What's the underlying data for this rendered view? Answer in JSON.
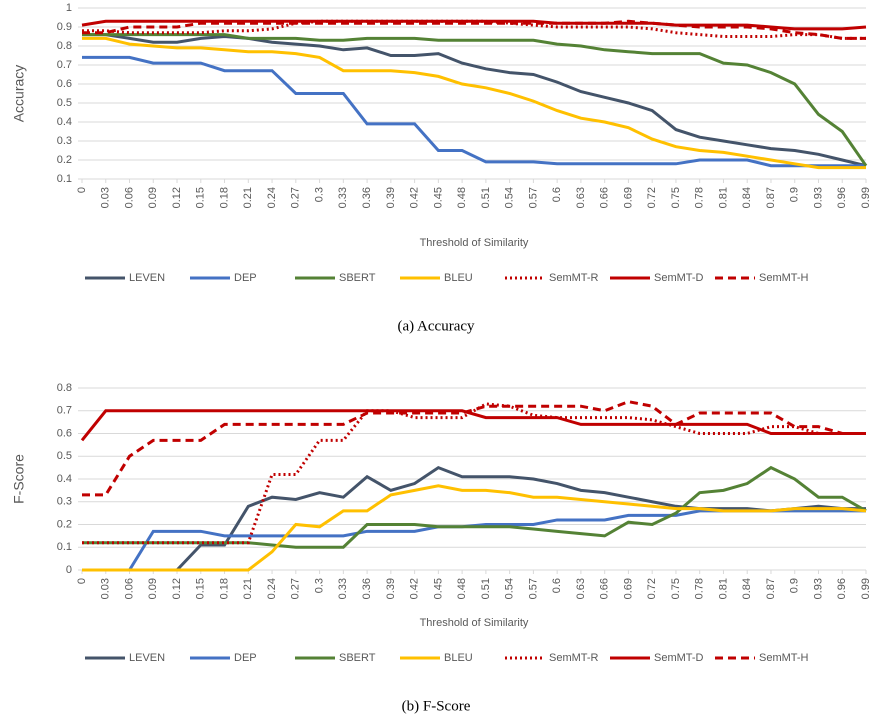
{
  "chart_data": [
    {
      "type": "line",
      "ylabel": "Accuracy",
      "xlabel": "Threshold of Similarity",
      "caption": "(a) Accuracy",
      "x": [
        0,
        0.03,
        0.06,
        0.09,
        0.12,
        0.15,
        0.18,
        0.21,
        0.24,
        0.27,
        0.3,
        0.33,
        0.36,
        0.39,
        0.42,
        0.45,
        0.48,
        0.51,
        0.54,
        0.57,
        0.6,
        0.63,
        0.66,
        0.69,
        0.72,
        0.75,
        0.78,
        0.81,
        0.84,
        0.87,
        0.9,
        0.93,
        0.96,
        0.99
      ],
      "xlim": [
        0,
        0.99
      ],
      "xticks": [
        0,
        0.03,
        0.06,
        0.09,
        0.12,
        0.15,
        0.18,
        0.21,
        0.24,
        0.27,
        0.3,
        0.33,
        0.36,
        0.39,
        0.42,
        0.45,
        0.48,
        0.51,
        0.54,
        0.57,
        0.6,
        0.63,
        0.66,
        0.69,
        0.72,
        0.75,
        0.78,
        0.81,
        0.84,
        0.87,
        0.9,
        0.93,
        0.96,
        0.99
      ],
      "ylim": [
        0.1,
        1
      ],
      "yticks": [
        0.1,
        0.2,
        0.3,
        0.4,
        0.5,
        0.6,
        0.7,
        0.8,
        0.9,
        1
      ],
      "grid": true,
      "series": [
        {
          "name": "LEVEN",
          "color": "#44546a",
          "dash": "solid",
          "values": [
            0.86,
            0.86,
            0.84,
            0.82,
            0.82,
            0.84,
            0.85,
            0.84,
            0.82,
            0.81,
            0.8,
            0.78,
            0.79,
            0.75,
            0.75,
            0.76,
            0.71,
            0.68,
            0.66,
            0.65,
            0.61,
            0.56,
            0.53,
            0.5,
            0.46,
            0.36,
            0.32,
            0.3,
            0.28,
            0.26,
            0.25,
            0.23,
            0.2,
            0.17
          ]
        },
        {
          "name": "DEP",
          "color": "#4472c4",
          "dash": "solid",
          "values": [
            0.74,
            0.74,
            0.74,
            0.71,
            0.71,
            0.71,
            0.67,
            0.67,
            0.67,
            0.55,
            0.55,
            0.55,
            0.39,
            0.39,
            0.39,
            0.25,
            0.25,
            0.19,
            0.19,
            0.19,
            0.18,
            0.18,
            0.18,
            0.18,
            0.18,
            0.18,
            0.2,
            0.2,
            0.2,
            0.17,
            0.17,
            0.17,
            0.17,
            0.17
          ]
        },
        {
          "name": "SBERT",
          "color": "#548235",
          "dash": "solid",
          "values": [
            0.86,
            0.86,
            0.86,
            0.86,
            0.86,
            0.86,
            0.86,
            0.84,
            0.84,
            0.84,
            0.83,
            0.83,
            0.84,
            0.84,
            0.84,
            0.83,
            0.83,
            0.83,
            0.83,
            0.83,
            0.81,
            0.8,
            0.78,
            0.77,
            0.76,
            0.76,
            0.76,
            0.71,
            0.7,
            0.66,
            0.6,
            0.44,
            0.35,
            0.17
          ]
        },
        {
          "name": "BLEU",
          "color": "#ffc000",
          "dash": "solid",
          "values": [
            0.84,
            0.84,
            0.81,
            0.8,
            0.79,
            0.79,
            0.78,
            0.77,
            0.77,
            0.76,
            0.74,
            0.67,
            0.67,
            0.67,
            0.66,
            0.64,
            0.6,
            0.58,
            0.55,
            0.51,
            0.46,
            0.42,
            0.4,
            0.37,
            0.31,
            0.27,
            0.25,
            0.24,
            0.22,
            0.2,
            0.18,
            0.16,
            0.16,
            0.16
          ]
        },
        {
          "name": "SemMT-R",
          "color": "#c00000",
          "dash": "dotted",
          "values": [
            0.88,
            0.88,
            0.87,
            0.87,
            0.87,
            0.87,
            0.88,
            0.88,
            0.89,
            0.92,
            0.93,
            0.93,
            0.93,
            0.93,
            0.93,
            0.93,
            0.93,
            0.93,
            0.92,
            0.91,
            0.9,
            0.9,
            0.9,
            0.9,
            0.89,
            0.87,
            0.86,
            0.85,
            0.85,
            0.85,
            0.86,
            0.86,
            0.84,
            0.84
          ]
        },
        {
          "name": "SemMT-D",
          "color": "#c00000",
          "dash": "solid",
          "values": [
            0.91,
            0.93,
            0.93,
            0.93,
            0.93,
            0.93,
            0.93,
            0.93,
            0.93,
            0.93,
            0.93,
            0.93,
            0.93,
            0.93,
            0.93,
            0.93,
            0.93,
            0.93,
            0.93,
            0.93,
            0.92,
            0.92,
            0.92,
            0.92,
            0.92,
            0.91,
            0.91,
            0.91,
            0.91,
            0.9,
            0.89,
            0.89,
            0.89,
            0.9
          ]
        },
        {
          "name": "SemMT-H",
          "color": "#c00000",
          "dash": "dashed",
          "values": [
            0.87,
            0.87,
            0.9,
            0.9,
            0.9,
            0.92,
            0.92,
            0.92,
            0.92,
            0.92,
            0.92,
            0.92,
            0.92,
            0.92,
            0.92,
            0.92,
            0.92,
            0.92,
            0.92,
            0.92,
            0.92,
            0.92,
            0.92,
            0.93,
            0.92,
            0.91,
            0.9,
            0.9,
            0.9,
            0.89,
            0.87,
            0.86,
            0.84,
            0.84
          ]
        }
      ]
    },
    {
      "type": "line",
      "ylabel": "F-Score",
      "xlabel": "Threshold of Similarity",
      "caption": "(b) F-Score",
      "x": [
        0,
        0.03,
        0.06,
        0.09,
        0.12,
        0.15,
        0.18,
        0.21,
        0.24,
        0.27,
        0.3,
        0.33,
        0.36,
        0.39,
        0.42,
        0.45,
        0.48,
        0.51,
        0.54,
        0.57,
        0.6,
        0.63,
        0.66,
        0.69,
        0.72,
        0.75,
        0.78,
        0.81,
        0.84,
        0.87,
        0.9,
        0.93,
        0.96,
        0.99
      ],
      "xlim": [
        0,
        0.99
      ],
      "xticks": [
        0,
        0.03,
        0.06,
        0.09,
        0.12,
        0.15,
        0.18,
        0.21,
        0.24,
        0.27,
        0.3,
        0.33,
        0.36,
        0.39,
        0.42,
        0.45,
        0.48,
        0.51,
        0.54,
        0.57,
        0.6,
        0.63,
        0.66,
        0.69,
        0.72,
        0.75,
        0.78,
        0.81,
        0.84,
        0.87,
        0.9,
        0.93,
        0.96,
        0.99
      ],
      "ylim": [
        0,
        0.8
      ],
      "yticks": [
        0,
        0.1,
        0.2,
        0.3,
        0.4,
        0.5,
        0.6,
        0.7,
        0.8
      ],
      "grid": true,
      "series": [
        {
          "name": "LEVEN",
          "color": "#44546a",
          "dash": "solid",
          "values": [
            0,
            0,
            0,
            0,
            0,
            0.11,
            0.11,
            0.28,
            0.32,
            0.31,
            0.34,
            0.32,
            0.41,
            0.35,
            0.38,
            0.45,
            0.41,
            0.41,
            0.41,
            0.4,
            0.38,
            0.35,
            0.34,
            0.32,
            0.3,
            0.28,
            0.27,
            0.27,
            0.27,
            0.26,
            0.27,
            0.28,
            0.27,
            0.27
          ]
        },
        {
          "name": "DEP",
          "color": "#4472c4",
          "dash": "solid",
          "values": [
            0,
            0,
            0,
            0.17,
            0.17,
            0.17,
            0.15,
            0.15,
            0.15,
            0.15,
            0.15,
            0.15,
            0.17,
            0.17,
            0.17,
            0.19,
            0.19,
            0.2,
            0.2,
            0.2,
            0.22,
            0.22,
            0.22,
            0.24,
            0.24,
            0.24,
            0.26,
            0.26,
            0.26,
            0.26,
            0.26,
            0.26,
            0.26,
            0.26
          ]
        },
        {
          "name": "SBERT",
          "color": "#548235",
          "dash": "solid",
          "values": [
            0.12,
            0.12,
            0.12,
            0.12,
            0.12,
            0.12,
            0.12,
            0.12,
            0.11,
            0.1,
            0.1,
            0.1,
            0.2,
            0.2,
            0.2,
            0.19,
            0.19,
            0.19,
            0.19,
            0.18,
            0.17,
            0.16,
            0.15,
            0.21,
            0.2,
            0.25,
            0.34,
            0.35,
            0.38,
            0.45,
            0.4,
            0.32,
            0.32,
            0.26
          ]
        },
        {
          "name": "BLEU",
          "color": "#ffc000",
          "dash": "solid",
          "values": [
            0,
            0,
            0,
            0,
            0,
            0,
            0,
            0,
            0.08,
            0.2,
            0.19,
            0.26,
            0.26,
            0.33,
            0.35,
            0.37,
            0.35,
            0.35,
            0.34,
            0.32,
            0.32,
            0.31,
            0.3,
            0.29,
            0.28,
            0.27,
            0.27,
            0.26,
            0.26,
            0.26,
            0.27,
            0.27,
            0.27,
            0.26
          ]
        },
        {
          "name": "SemMT-R",
          "color": "#c00000",
          "dash": "dotted",
          "values": [
            0.12,
            0.12,
            0.12,
            0.12,
            0.12,
            0.12,
            0.12,
            0.12,
            0.42,
            0.42,
            0.57,
            0.57,
            0.7,
            0.7,
            0.67,
            0.67,
            0.67,
            0.73,
            0.72,
            0.68,
            0.67,
            0.67,
            0.67,
            0.67,
            0.66,
            0.63,
            0.6,
            0.6,
            0.6,
            0.63,
            0.63,
            0.6,
            0.6,
            0.6
          ]
        },
        {
          "name": "SemMT-D",
          "color": "#c00000",
          "dash": "solid",
          "values": [
            0.57,
            0.7,
            0.7,
            0.7,
            0.7,
            0.7,
            0.7,
            0.7,
            0.7,
            0.7,
            0.7,
            0.7,
            0.7,
            0.7,
            0.7,
            0.7,
            0.7,
            0.67,
            0.67,
            0.67,
            0.67,
            0.64,
            0.64,
            0.64,
            0.64,
            0.64,
            0.64,
            0.64,
            0.64,
            0.6,
            0.6,
            0.6,
            0.6,
            0.6
          ]
        },
        {
          "name": "SemMT-H",
          "color": "#c00000",
          "dash": "dashed",
          "values": [
            0.33,
            0.33,
            0.5,
            0.57,
            0.57,
            0.57,
            0.64,
            0.64,
            0.64,
            0.64,
            0.64,
            0.64,
            0.69,
            0.69,
            0.69,
            0.69,
            0.69,
            0.72,
            0.72,
            0.72,
            0.72,
            0.72,
            0.7,
            0.74,
            0.72,
            0.64,
            0.69,
            0.69,
            0.69,
            0.69,
            0.63,
            0.63,
            0.6,
            0.6
          ]
        }
      ]
    }
  ]
}
